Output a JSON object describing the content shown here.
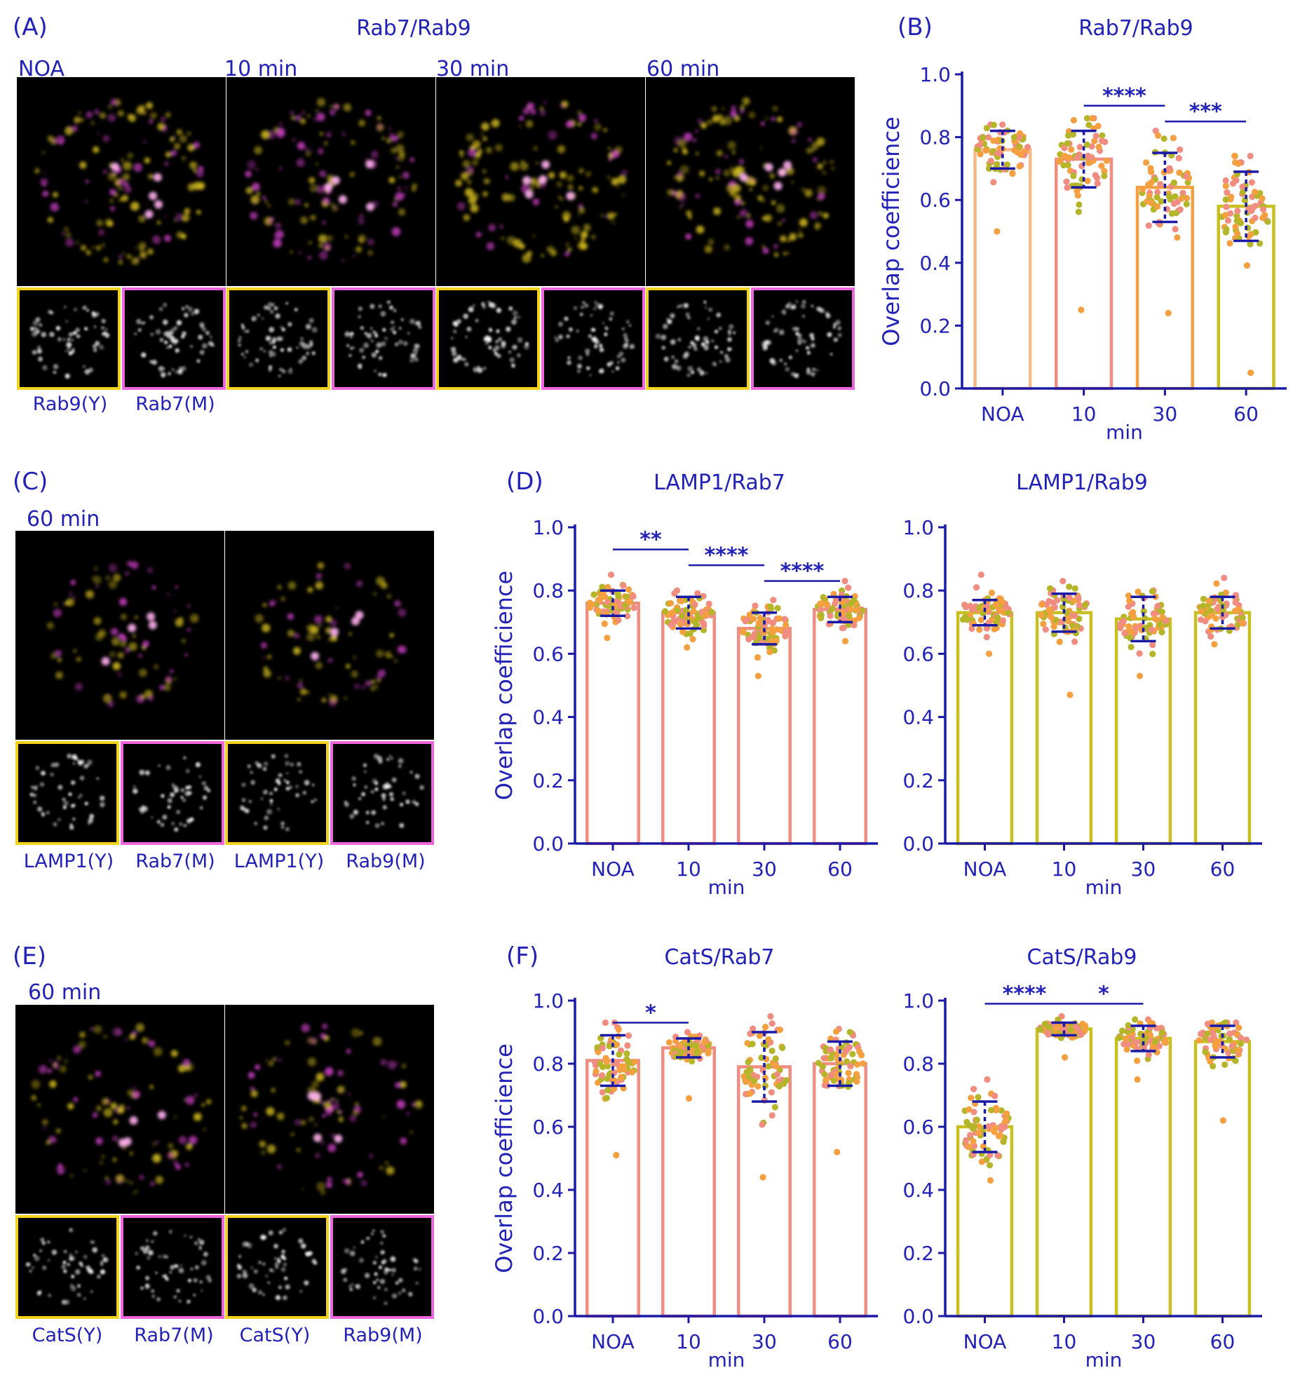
{
  "colors": {
    "text": "#2222b8",
    "axis": "#1a1aa6",
    "errorbar": "#1a1aa6",
    "yellow_frame": "#f2d21d",
    "magenta_frame": "#ee66dd",
    "bar_salmon": "#f08c80",
    "bar_olive": "#c8c020",
    "bar_peach": "#f7b98a",
    "bar_orange": "#f5a040",
    "dot_orange": "#f5a040",
    "dot_salmon": "#f08c80",
    "dot_olive": "#b5b52a"
  },
  "panels": {
    "A": {
      "letter": "(A)",
      "title": "Rab7/Rab9",
      "timepoints": [
        "NOA",
        "10 min",
        "30 min",
        "60 min"
      ],
      "channel_labels": [
        "Rab9(Y)",
        "Rab7(M)"
      ]
    },
    "C": {
      "letter": "(C)",
      "timepoint": "60 min",
      "channel_labels": [
        "LAMP1(Y)",
        "Rab7(M)",
        "LAMP1(Y)",
        "Rab9(M)"
      ]
    },
    "D": {
      "letter": "(D)"
    },
    "E": {
      "letter": "(E)",
      "timepoint": "60 min",
      "channel_labels": [
        "CatS(Y)",
        "Rab7(M)",
        "CatS(Y)",
        "Rab9(M)"
      ]
    },
    "F": {
      "letter": "(F)"
    }
  },
  "chart_data": [
    {
      "id": "B",
      "letter": "(B)",
      "type": "bar",
      "title": "Rab7/Rab9",
      "ylabel": "Overlap coefficience",
      "xlabel": "min",
      "categories": [
        "NOA",
        "10",
        "30",
        "60"
      ],
      "values": [
        0.76,
        0.73,
        0.64,
        0.58
      ],
      "sd": [
        0.06,
        0.09,
        0.11,
        0.11
      ],
      "ymin_points": [
        0.5,
        0.25,
        0.24,
        0.05
      ],
      "ymax_points": [
        0.84,
        0.86,
        0.82,
        0.74
      ],
      "bar_colors": [
        "#f7b98a",
        "#f08c80",
        "#f5a040",
        "#c8c020"
      ],
      "ylim": [
        0,
        1.0
      ],
      "yticks": [
        "0.0",
        "0.2",
        "0.4",
        "0.6",
        "0.8",
        "1.0"
      ],
      "significance": [
        {
          "from": 1,
          "to": 2,
          "y": 0.9,
          "label": "****"
        },
        {
          "from": 2,
          "to": 3,
          "y": 0.85,
          "label": "***"
        }
      ]
    },
    {
      "id": "D1",
      "type": "bar",
      "title": "LAMP1/Rab7",
      "ylabel": "Overlap coefficience",
      "xlabel": "min",
      "categories": [
        "NOA",
        "10",
        "30",
        "60"
      ],
      "values": [
        0.76,
        0.73,
        0.68,
        0.74
      ],
      "sd": [
        0.04,
        0.05,
        0.05,
        0.04
      ],
      "ymin_points": [
        0.65,
        0.62,
        0.53,
        0.64
      ],
      "ymax_points": [
        0.85,
        0.8,
        0.77,
        0.83
      ],
      "bar_colors": [
        "#f08c80",
        "#f08c80",
        "#f08c80",
        "#f08c80"
      ],
      "ylim": [
        0,
        1.0
      ],
      "yticks": [
        "0.0",
        "0.2",
        "0.4",
        "0.6",
        "0.8",
        "1.0"
      ],
      "significance": [
        {
          "from": 0,
          "to": 1,
          "y": 0.93,
          "label": "**"
        },
        {
          "from": 1,
          "to": 2,
          "y": 0.88,
          "label": "****"
        },
        {
          "from": 2,
          "to": 3,
          "y": 0.83,
          "label": "****"
        }
      ]
    },
    {
      "id": "D2",
      "type": "bar",
      "title": "LAMP1/Rab9",
      "ylabel": "",
      "xlabel": "min",
      "categories": [
        "NOA",
        "10",
        "30",
        "60"
      ],
      "values": [
        0.73,
        0.73,
        0.71,
        0.73
      ],
      "sd": [
        0.04,
        0.06,
        0.07,
        0.05
      ],
      "ymin_points": [
        0.6,
        0.47,
        0.53,
        0.63
      ],
      "ymax_points": [
        0.85,
        0.83,
        0.8,
        0.84
      ],
      "bar_colors": [
        "#c8c020",
        "#c8c020",
        "#c8c020",
        "#c8c020"
      ],
      "ylim": [
        0,
        1.0
      ],
      "yticks": [
        "0.0",
        "0.2",
        "0.4",
        "0.6",
        "0.8",
        "1.0"
      ],
      "significance": []
    },
    {
      "id": "F1",
      "type": "bar",
      "title": "CatS/Rab7",
      "ylabel": "Overlap coefficience",
      "xlabel": "min",
      "categories": [
        "NOA",
        "10",
        "30",
        "60"
      ],
      "values": [
        0.81,
        0.85,
        0.79,
        0.8
      ],
      "sd": [
        0.08,
        0.03,
        0.11,
        0.07
      ],
      "ymin_points": [
        0.51,
        0.69,
        0.44,
        0.52
      ],
      "ymax_points": [
        0.93,
        0.9,
        0.95,
        0.91
      ],
      "bar_colors": [
        "#f08c80",
        "#f08c80",
        "#f08c80",
        "#f08c80"
      ],
      "ylim": [
        0,
        1.0
      ],
      "yticks": [
        "0.0",
        "0.2",
        "0.4",
        "0.6",
        "0.8",
        "1.0"
      ],
      "significance": [
        {
          "from": 0,
          "to": 1,
          "y": 0.93,
          "label": "*"
        }
      ]
    },
    {
      "id": "F2",
      "type": "bar",
      "title": "CatS/Rab9",
      "ylabel": "",
      "xlabel": "min",
      "categories": [
        "NOA",
        "10",
        "30",
        "60"
      ],
      "values": [
        0.6,
        0.91,
        0.88,
        0.87
      ],
      "sd": [
        0.08,
        0.02,
        0.04,
        0.05
      ],
      "ymin_points": [
        0.43,
        0.82,
        0.75,
        0.62
      ],
      "ymax_points": [
        0.75,
        0.95,
        0.94,
        0.93
      ],
      "bar_colors": [
        "#c8c020",
        "#c8c020",
        "#c8c020",
        "#c8c020"
      ],
      "ylim": [
        0,
        1.0
      ],
      "yticks": [
        "0.0",
        "0.2",
        "0.4",
        "0.6",
        "0.8",
        "1.0"
      ],
      "significance": [
        {
          "from": 0,
          "to": 1,
          "y": 0.99,
          "label": "****"
        },
        {
          "from": 1,
          "to": 2,
          "y": 0.99,
          "label": "*"
        }
      ]
    }
  ]
}
